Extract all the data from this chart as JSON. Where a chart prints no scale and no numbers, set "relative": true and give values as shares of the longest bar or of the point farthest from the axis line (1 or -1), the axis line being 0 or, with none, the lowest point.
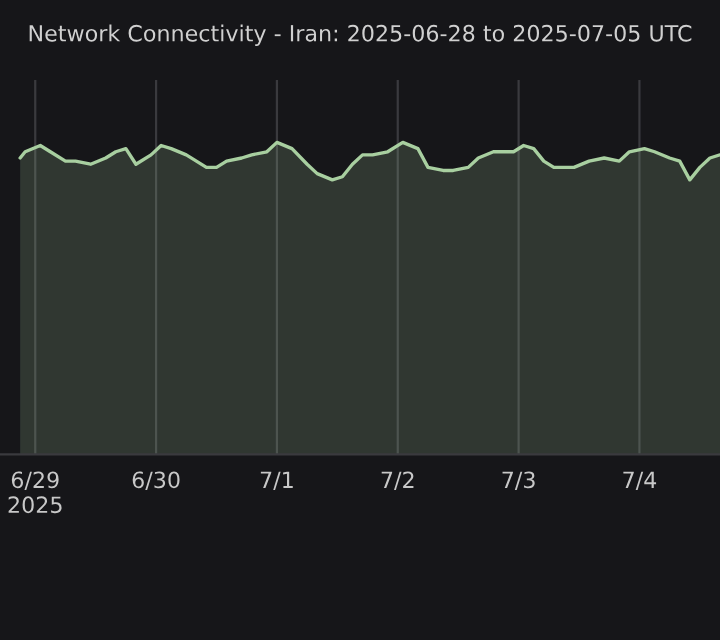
{
  "chart_data": {
    "type": "area",
    "title": "Network Connectivity - Iran: 2025-06-28 to 2025-07-05 UTC",
    "relative": true,
    "grid": "x",
    "xlim": [
      "2025-06-28T17:00",
      "2025-07-04T16:00"
    ],
    "xticks": [
      {
        "value": "2025-06-29",
        "label": "6/29\n2025"
      },
      {
        "value": "2025-06-30",
        "label": "6/30"
      },
      {
        "value": "2025-07-01",
        "label": "7/1"
      },
      {
        "value": "2025-07-02",
        "label": "7/2"
      },
      {
        "value": "2025-07-03",
        "label": "7/3"
      },
      {
        "value": "2025-07-04",
        "label": "7/4"
      }
    ],
    "x": [
      "2025-06-28T21:00",
      "2025-06-28T22:00",
      "2025-06-29T01:00",
      "2025-06-29T03:00",
      "2025-06-29T06:00",
      "2025-06-29T08:00",
      "2025-06-29T11:00",
      "2025-06-29T14:00",
      "2025-06-29T16:00",
      "2025-06-29T18:00",
      "2025-06-29T20:00",
      "2025-06-29T23:00",
      "2025-06-30T01:00",
      "2025-06-30T03:00",
      "2025-06-30T06:00",
      "2025-06-30T10:00",
      "2025-06-30T12:00",
      "2025-06-30T14:00",
      "2025-06-30T17:00",
      "2025-06-30T19:00",
      "2025-06-30T22:00",
      "2025-07-01T00:00",
      "2025-07-01T03:00",
      "2025-07-01T06:00",
      "2025-07-01T08:00",
      "2025-07-01T11:00",
      "2025-07-01T13:00",
      "2025-07-01T15:00",
      "2025-07-01T17:00",
      "2025-07-01T19:00",
      "2025-07-01T22:00",
      "2025-07-02T01:00",
      "2025-07-02T04:00",
      "2025-07-02T06:00",
      "2025-07-02T09:00",
      "2025-07-02T11:00",
      "2025-07-02T14:00",
      "2025-07-02T16:00",
      "2025-07-02T19:00",
      "2025-07-02T23:00",
      "2025-07-03T01:00",
      "2025-07-03T03:00",
      "2025-07-03T05:00",
      "2025-07-03T07:00",
      "2025-07-03T11:00",
      "2025-07-03T14:00",
      "2025-07-03T17:00",
      "2025-07-03T20:00",
      "2025-07-03T22:00",
      "2025-07-04T01:00",
      "2025-07-04T03:00",
      "2025-07-04T06:00",
      "2025-07-04T08:00",
      "2025-07-04T10:00",
      "2025-07-04T12:00",
      "2025-07-04T14:00",
      "2025-07-04T16:00"
    ],
    "series": [
      {
        "color": "#a8cfa0",
        "values": [
          0.95,
          0.97,
          0.99,
          0.97,
          0.94,
          0.94,
          0.93,
          0.95,
          0.97,
          0.98,
          0.93,
          0.96,
          0.99,
          0.98,
          0.96,
          0.92,
          0.92,
          0.94,
          0.95,
          0.96,
          0.97,
          1.0,
          0.98,
          0.93,
          0.9,
          0.88,
          0.89,
          0.93,
          0.96,
          0.96,
          0.97,
          1.0,
          0.98,
          0.92,
          0.91,
          0.91,
          0.92,
          0.95,
          0.97,
          0.97,
          0.99,
          0.98,
          0.94,
          0.92,
          0.92,
          0.94,
          0.95,
          0.94,
          0.97,
          0.98,
          0.97,
          0.95,
          0.94,
          0.88,
          0.92,
          0.95,
          0.96
        ]
      }
    ]
  }
}
